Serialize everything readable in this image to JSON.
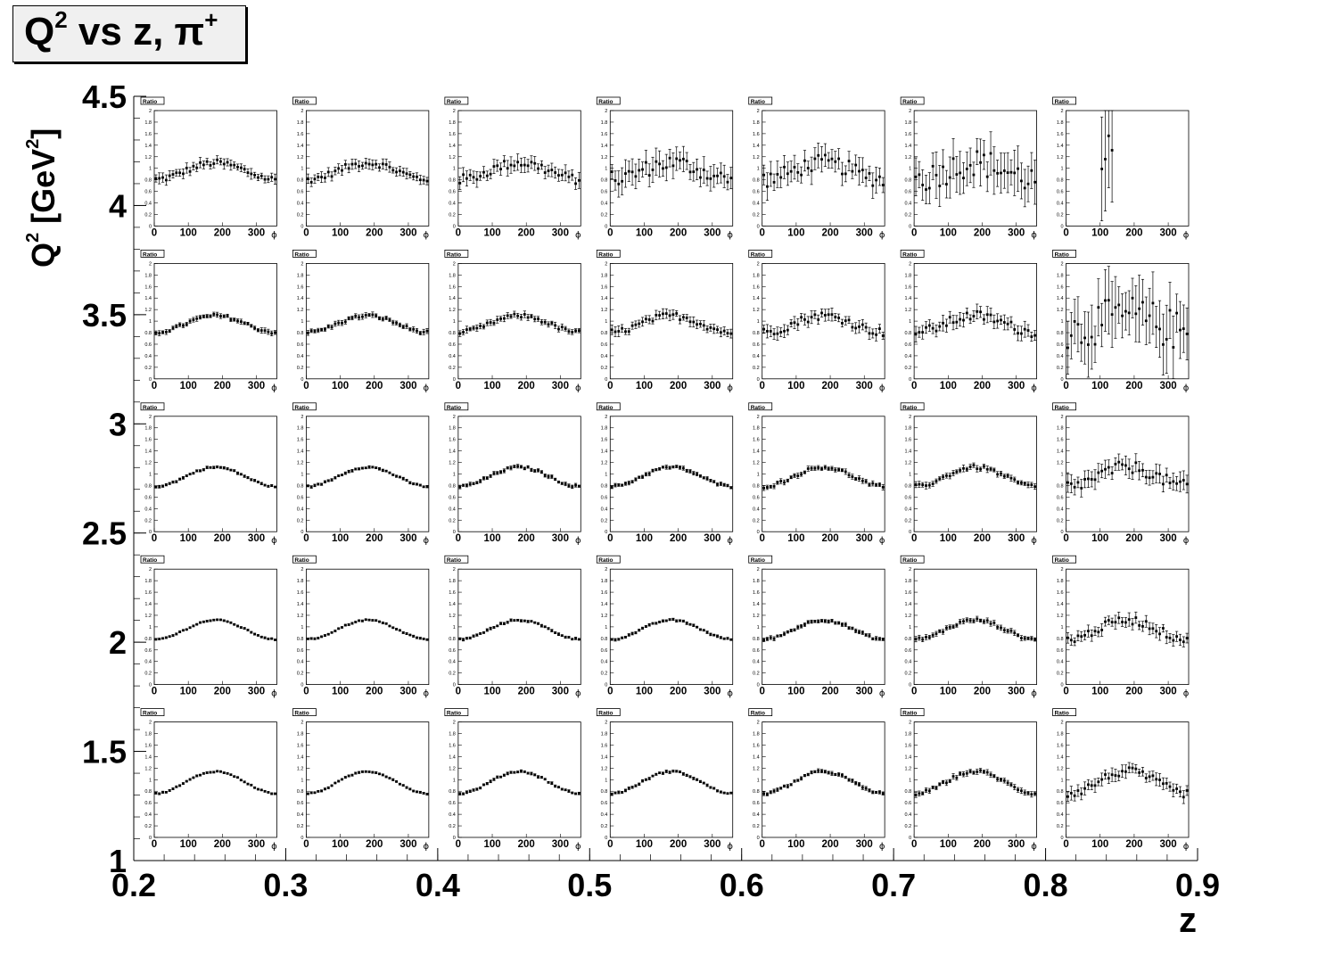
{
  "title": {
    "base": "Q",
    "sup": "2",
    "mid": " vs z, ",
    "pi": "π",
    "pisup": "+"
  },
  "ylabel": {
    "base": "Q",
    "sup": "2",
    "open": " [GeV",
    "unitsup": "2",
    "close": "]"
  },
  "xlabel": "z",
  "chart_data": {
    "type": "scatter",
    "outer_axes": {
      "xlabel": "z",
      "xlim": [
        0.2,
        0.9
      ],
      "xticks": [
        "0.2",
        "0.3",
        "0.4",
        "0.5",
        "0.6",
        "0.7",
        "0.8",
        "0.9"
      ],
      "ylabel": "Q² [GeV²]",
      "ylim": [
        1,
        4.5
      ],
      "yticks": [
        "1",
        "1.5",
        "2",
        "2.5",
        "3",
        "3.5",
        "4",
        "4.5"
      ]
    },
    "panel_label": "Ratio",
    "panel_xlabel": "ϕ",
    "panel_xlim": [
      0,
      360
    ],
    "panel_xticks": [
      "0",
      "100",
      "200",
      "300"
    ],
    "panel_ylim": [
      0,
      2
    ],
    "panel_yticks": [
      "0",
      "0.2",
      "0.4",
      "0.6",
      "0.8",
      "1",
      "1.2",
      "1.4",
      "1.6",
      "1.8",
      "2"
    ],
    "z_bins": [
      [
        0.2,
        0.3
      ],
      [
        0.3,
        0.4
      ],
      [
        0.4,
        0.5
      ],
      [
        0.5,
        0.6
      ],
      [
        0.6,
        0.7
      ],
      [
        0.7,
        0.8
      ],
      [
        0.8,
        0.9
      ]
    ],
    "q2_bins_top_to_bottom": [
      [
        4.0,
        4.5
      ],
      [
        3.3,
        4.0
      ],
      [
        2.6,
        3.3
      ],
      [
        1.9,
        2.6
      ],
      [
        1.2,
        1.9
      ]
    ],
    "panel_shape": {
      "phi_centers": [
        5,
        15,
        25,
        35,
        45,
        55,
        65,
        75,
        85,
        95,
        105,
        115,
        125,
        135,
        145,
        155,
        165,
        175,
        185,
        195,
        205,
        215,
        225,
        235,
        245,
        255,
        265,
        275,
        285,
        295,
        305,
        315,
        325,
        335,
        345,
        355
      ],
      "rows": [
        {
          "row": 0,
          "mean_ratio": 1.0,
          "curvature": 0.12,
          "error_scale": [
            0.08,
            0.08,
            0.12,
            0.2,
            0.2,
            0.35,
            0.9
          ]
        },
        {
          "row": 1,
          "mean_ratio": 1.0,
          "curvature": 0.12,
          "error_scale": [
            0.04,
            0.04,
            0.05,
            0.08,
            0.1,
            0.12,
            0.5
          ]
        },
        {
          "row": 2,
          "mean_ratio": 1.0,
          "curvature": 0.14,
          "error_scale": [
            0.02,
            0.02,
            0.03,
            0.03,
            0.04,
            0.05,
            0.15
          ]
        },
        {
          "row": 3,
          "mean_ratio": 1.0,
          "curvature": 0.14,
          "error_scale": [
            0.015,
            0.015,
            0.02,
            0.02,
            0.03,
            0.04,
            0.1
          ]
        },
        {
          "row": 4,
          "mean_ratio": 1.0,
          "curvature": 0.16,
          "error_scale": [
            0.015,
            0.015,
            0.02,
            0.02,
            0.03,
            0.04,
            0.1
          ]
        }
      ]
    }
  }
}
